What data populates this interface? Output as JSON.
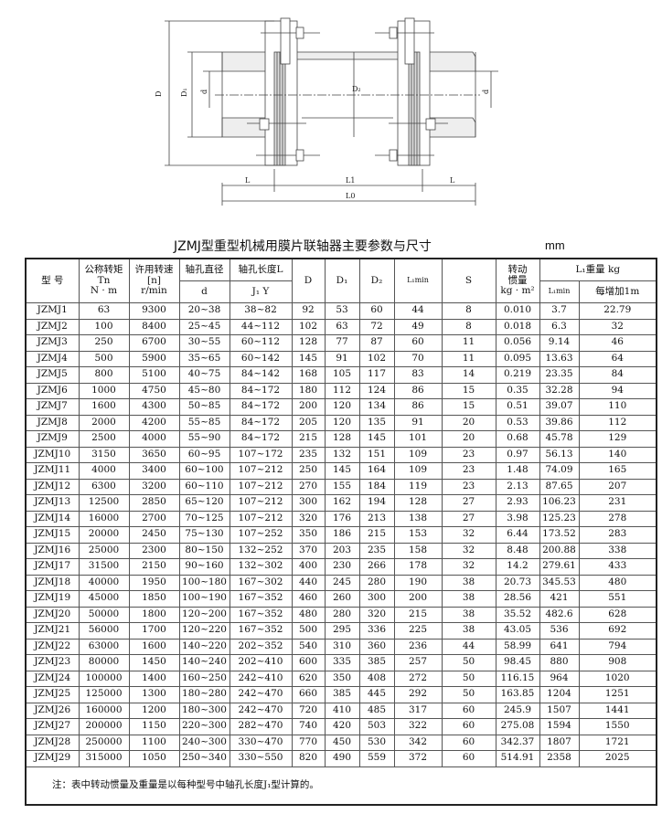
{
  "drawing": {
    "labels": {
      "D": "D",
      "D1": "D₁",
      "D2": "D₂",
      "d": "d",
      "L": "L",
      "L1": "L1",
      "L0": "L0"
    }
  },
  "title": "JZMJ型重型机械用膜片联轴器主要参数与尺寸",
  "unit": "mm",
  "headers": {
    "model": "型 号",
    "torque": [
      "公称转矩",
      "Tn",
      "N · m"
    ],
    "speed": [
      "许用转速",
      "[n]",
      "r/min"
    ],
    "bore_dia": [
      "轴孔直径",
      "d"
    ],
    "bore_len": [
      "轴孔长度L",
      "J₁  Y"
    ],
    "D": "D",
    "D1": "D₁",
    "D2": "D₂",
    "L1min": "L₁min",
    "S": "S",
    "inertia": [
      "转动",
      "惯量",
      "kg · m²"
    ],
    "weight": [
      "L₁重量 kg",
      "L₁min",
      "每增加1m"
    ]
  },
  "rows": [
    [
      "JZMJ1",
      "63",
      "9300",
      "20~38",
      "38~82",
      "92",
      "53",
      "60",
      "44",
      "8",
      "0.010",
      "3.7",
      "22.79"
    ],
    [
      "JZMJ2",
      "100",
      "8400",
      "25~45",
      "44~112",
      "102",
      "63",
      "72",
      "49",
      "8",
      "0.018",
      "6.3",
      "32"
    ],
    [
      "JZMJ3",
      "250",
      "6700",
      "30~55",
      "60~112",
      "128",
      "77",
      "87",
      "60",
      "11",
      "0.056",
      "9.14",
      "46"
    ],
    [
      "JZMJ4",
      "500",
      "5900",
      "35~65",
      "60~142",
      "145",
      "91",
      "102",
      "70",
      "11",
      "0.095",
      "13.63",
      "64"
    ],
    [
      "JZMJ5",
      "800",
      "5100",
      "40~75",
      "84~142",
      "168",
      "105",
      "117",
      "83",
      "14",
      "0.219",
      "23.35",
      "84"
    ],
    [
      "JZMJ6",
      "1000",
      "4750",
      "45~80",
      "84~172",
      "180",
      "112",
      "124",
      "86",
      "15",
      "0.35",
      "32.28",
      "94"
    ],
    [
      "JZMJ7",
      "1600",
      "4300",
      "50~85",
      "84~172",
      "200",
      "120",
      "134",
      "86",
      "15",
      "0.51",
      "39.07",
      "110"
    ],
    [
      "JZMJ8",
      "2000",
      "4200",
      "55~85",
      "84~172",
      "205",
      "120",
      "135",
      "91",
      "20",
      "0.53",
      "39.86",
      "112"
    ],
    [
      "JZMJ9",
      "2500",
      "4000",
      "55~90",
      "84~172",
      "215",
      "128",
      "145",
      "101",
      "20",
      "0.68",
      "45.78",
      "129"
    ],
    [
      "JZMJ10",
      "3150",
      "3650",
      "60~95",
      "107~172",
      "235",
      "132",
      "151",
      "109",
      "23",
      "0.97",
      "56.13",
      "140"
    ],
    [
      "JZMJ11",
      "4000",
      "3400",
      "60~100",
      "107~212",
      "250",
      "145",
      "164",
      "109",
      "23",
      "1.48",
      "74.09",
      "165"
    ],
    [
      "JZMJ12",
      "6300",
      "3200",
      "60~110",
      "107~212",
      "270",
      "155",
      "184",
      "119",
      "23",
      "2.13",
      "87.65",
      "207"
    ],
    [
      "JZMJ13",
      "12500",
      "2850",
      "65~120",
      "107~212",
      "300",
      "162",
      "194",
      "128",
      "27",
      "2.93",
      "106.23",
      "231"
    ],
    [
      "JZMJ14",
      "16000",
      "2700",
      "70~125",
      "107~212",
      "320",
      "176",
      "213",
      "138",
      "27",
      "3.98",
      "125.23",
      "278"
    ],
    [
      "JZMJ15",
      "20000",
      "2450",
      "75~130",
      "107~252",
      "350",
      "186",
      "215",
      "153",
      "32",
      "6.44",
      "173.52",
      "283"
    ],
    [
      "JZMJ16",
      "25000",
      "2300",
      "80~150",
      "132~252",
      "370",
      "203",
      "235",
      "158",
      "32",
      "8.48",
      "200.88",
      "338"
    ],
    [
      "JZMJ17",
      "31500",
      "2150",
      "90~160",
      "132~302",
      "400",
      "230",
      "266",
      "178",
      "32",
      "14.2",
      "279.61",
      "433"
    ],
    [
      "JZMJ18",
      "40000",
      "1950",
      "100~180",
      "167~302",
      "440",
      "245",
      "280",
      "190",
      "38",
      "20.73",
      "345.53",
      "480"
    ],
    [
      "JZMJ19",
      "45000",
      "1850",
      "100~190",
      "167~352",
      "460",
      "260",
      "300",
      "200",
      "38",
      "28.56",
      "421",
      "551"
    ],
    [
      "JZMJ20",
      "50000",
      "1800",
      "120~200",
      "167~352",
      "480",
      "280",
      "320",
      "215",
      "38",
      "35.52",
      "482.6",
      "628"
    ],
    [
      "JZMJ21",
      "56000",
      "1700",
      "120~220",
      "167~352",
      "500",
      "295",
      "336",
      "225",
      "38",
      "43.05",
      "536",
      "692"
    ],
    [
      "JZMJ22",
      "63000",
      "1600",
      "140~220",
      "202~352",
      "540",
      "310",
      "360",
      "236",
      "44",
      "58.99",
      "641",
      "794"
    ],
    [
      "JZMJ23",
      "80000",
      "1450",
      "140~240",
      "202~410",
      "600",
      "335",
      "385",
      "257",
      "50",
      "98.45",
      "880",
      "908"
    ],
    [
      "JZMJ24",
      "100000",
      "1400",
      "160~250",
      "242~410",
      "620",
      "350",
      "408",
      "272",
      "50",
      "116.15",
      "964",
      "1020"
    ],
    [
      "JZMJ25",
      "125000",
      "1300",
      "180~280",
      "242~470",
      "660",
      "385",
      "445",
      "292",
      "50",
      "163.85",
      "1204",
      "1251"
    ],
    [
      "JZMJ26",
      "160000",
      "1200",
      "180~300",
      "242~470",
      "720",
      "410",
      "485",
      "317",
      "60",
      "245.9",
      "1507",
      "1441"
    ],
    [
      "JZMJ27",
      "200000",
      "1150",
      "220~300",
      "282~470",
      "740",
      "420",
      "503",
      "322",
      "60",
      "275.08",
      "1594",
      "1550"
    ],
    [
      "JZMJ28",
      "250000",
      "1100",
      "240~300",
      "330~470",
      "770",
      "450",
      "530",
      "342",
      "60",
      "342.37",
      "1807",
      "1721"
    ],
    [
      "JZMJ29",
      "315000",
      "1050",
      "250~340",
      "330~550",
      "820",
      "490",
      "559",
      "372",
      "60",
      "514.91",
      "2358",
      "2025"
    ]
  ],
  "note": "注：表中转动惯量及重量是以每种型号中轴孔长度J₁型计算的。"
}
